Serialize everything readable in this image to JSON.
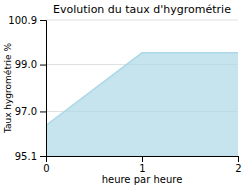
{
  "chart_data": {
    "type": "area",
    "title": "Evolution du taux d'hygrométrie",
    "xlabel": "heure par heure",
    "ylabel": "Taux hygrométrie %",
    "x": [
      0,
      1,
      2
    ],
    "values": [
      96.4,
      99.5,
      99.5
    ],
    "color": "#add8e6",
    "xlim": [
      0,
      2
    ],
    "ylim": [
      95.1,
      100.9
    ],
    "xticks": [
      0,
      1,
      2
    ],
    "yticks": [
      95.1,
      {
        "value": 97.0,
        "label": "97.0"
      },
      {
        "value": 99.0,
        "label": "99.0"
      },
      100.9
    ],
    "grid": "y"
  }
}
